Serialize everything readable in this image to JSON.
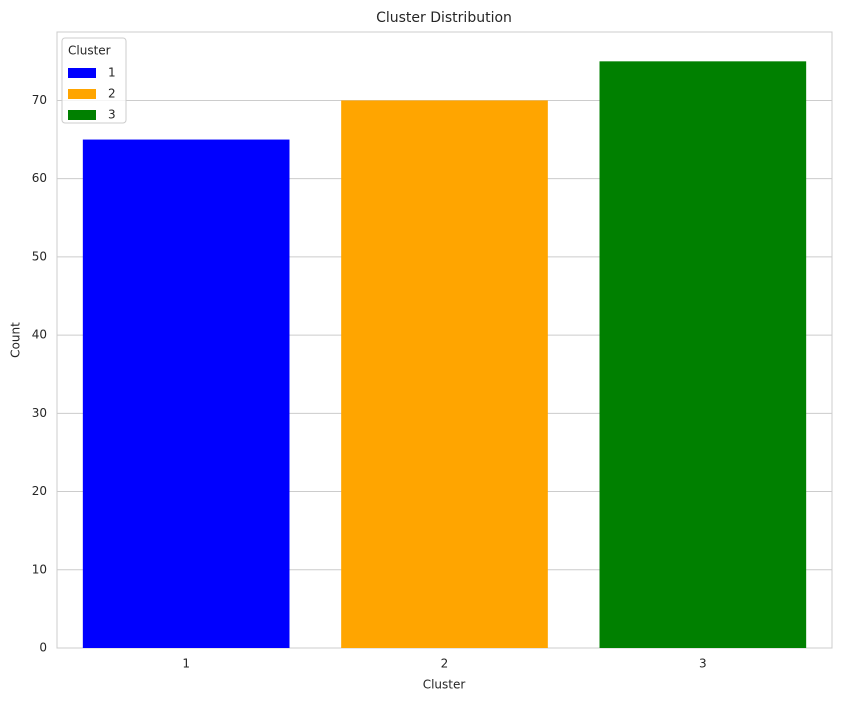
{
  "chart_data": {
    "type": "bar",
    "title": "Cluster Distribution",
    "x_label": "Cluster",
    "y_label": "Count",
    "categories": [
      "1",
      "2",
      "3"
    ],
    "series": [
      {
        "name": "1",
        "color": "#0000ff",
        "values": [
          65,
          null,
          null
        ]
      },
      {
        "name": "2",
        "color": "#ffa500",
        "values": [
          null,
          70,
          null
        ]
      },
      {
        "name": "3",
        "color": "#008000",
        "values": [
          null,
          null,
          75
        ]
      }
    ],
    "ylim": [
      0,
      78.75
    ],
    "yticks": [
      0,
      10,
      20,
      30,
      40,
      50,
      60,
      70
    ],
    "grid": true,
    "legend_title": "Cluster",
    "legend_position": "upper-left"
  }
}
